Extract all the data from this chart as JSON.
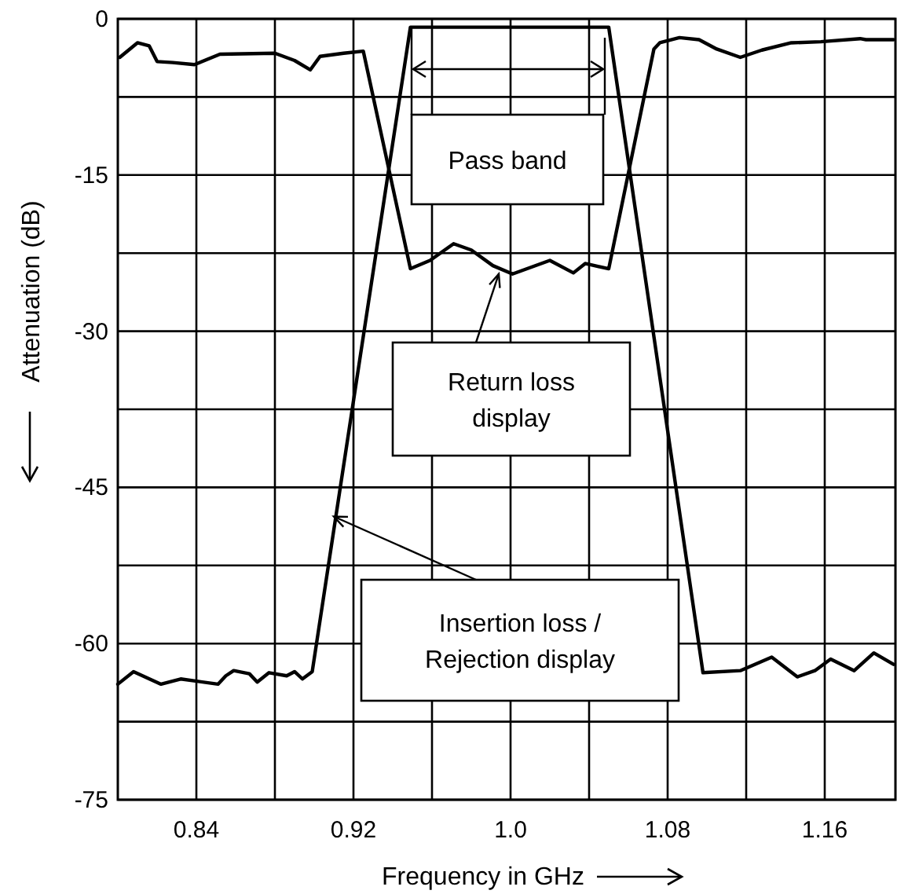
{
  "chart_data": {
    "type": "line",
    "xlabel": "Frequency in GHz",
    "ylabel": "Attenuation (dB)",
    "xlim": [
      0.8,
      1.196
    ],
    "ylim": [
      -75,
      0
    ],
    "xticks": [
      0.84,
      {
        "value": 0.88,
        "label": null
      },
      0.92,
      {
        "value": 0.96,
        "label": null
      },
      {
        "value": 1.0,
        "label": "1.0"
      },
      {
        "value": 1.04,
        "label": null
      },
      1.08,
      {
        "value": 1.12,
        "label": null
      },
      1.16
    ],
    "yticks": [
      0,
      {
        "value": -7.5,
        "label": null
      },
      -15,
      {
        "value": -22.5,
        "label": null
      },
      -30,
      {
        "value": -37.5,
        "label": null
      },
      -45,
      {
        "value": -52.5,
        "label": null
      },
      -60,
      {
        "value": -67.5,
        "label": null
      },
      -75
    ],
    "grid": true,
    "line_style": "solid",
    "series": [
      {
        "color": "#000000",
        "x": [
          0.8,
          0.808,
          0.822,
          0.832,
          0.851,
          0.855,
          0.859,
          0.867,
          0.871,
          0.877,
          0.886,
          0.89,
          0.894,
          0.899,
          0.949,
          1.05,
          1.098,
          1.117,
          1.133,
          1.146,
          1.155,
          1.163,
          1.175,
          1.185,
          1.195
        ],
        "values": [
          -63.9,
          -62.7,
          -63.9,
          -63.4,
          -63.9,
          -63.1,
          -62.6,
          -62.9,
          -63.7,
          -62.8,
          -63.1,
          -62.7,
          -63.4,
          -62.7,
          -0.8,
          -0.8,
          -62.8,
          -62.6,
          -61.3,
          -63.2,
          -62.6,
          -61.5,
          -62.6,
          -60.9,
          -62.0
        ]
      },
      {
        "color": "#000000",
        "x": [
          0.801,
          0.81,
          0.816,
          0.82,
          0.828,
          0.839,
          0.852,
          0.88,
          0.89,
          0.898,
          0.903,
          0.915,
          0.925,
          0.949,
          0.959,
          0.971,
          0.98,
          0.991,
          1.001,
          1.02,
          1.032,
          1.038,
          1.05,
          1.073,
          1.076,
          1.086,
          1.096,
          1.105,
          1.117,
          1.128,
          1.143,
          1.158,
          1.178,
          1.181,
          1.195
        ],
        "values": [
          -3.7,
          -2.3,
          -2.6,
          -4.1,
          -4.2,
          -4.4,
          -3.4,
          -3.3,
          -4.0,
          -4.9,
          -3.6,
          -3.3,
          -3.1,
          -24.0,
          -23.2,
          -21.6,
          -22.2,
          -23.7,
          -24.5,
          -23.2,
          -24.4,
          -23.5,
          -24.0,
          -2.9,
          -2.3,
          -1.8,
          -2.0,
          -2.9,
          -3.7,
          -3.0,
          -2.3,
          -2.2,
          -1.9,
          -2.0,
          -2.0
        ]
      }
    ],
    "annotations": [
      "Pass band",
      {
        "text": "Return loss display",
        "x": 0.994,
        "y": -24.5
      },
      {
        "text": "Insertion loss / Rejection display",
        "x": 0.91,
        "y": -47.8
      }
    ]
  }
}
